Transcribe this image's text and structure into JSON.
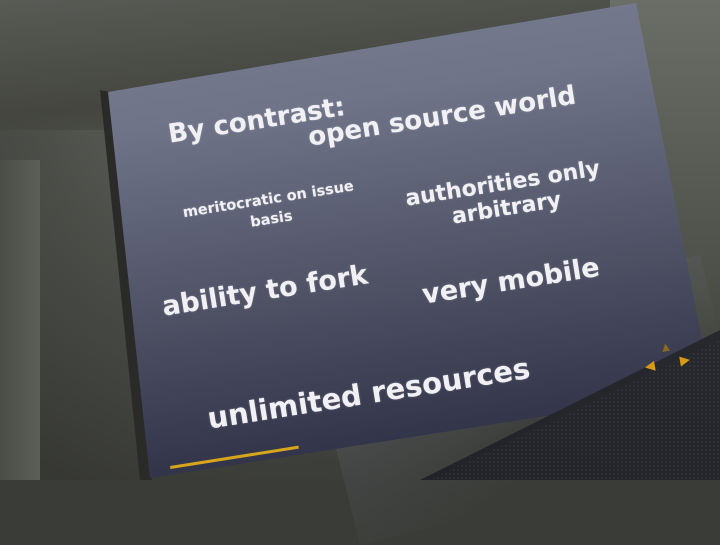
{
  "slide": {
    "title": "By contrast:",
    "subtitle": "open source world",
    "left_point_1": "meritocratic on issue basis",
    "right_point_1": "authorities only arbitrary",
    "left_point_2": "ability to fork",
    "right_point_2": "very mobile",
    "bottom_point": "unlimited resources"
  },
  "navigation": {
    "prev_icon": "◀",
    "next_icon": "▶",
    "up_icon": "▲"
  },
  "colors": {
    "slide_text": "#f1f0f4",
    "slide_background": "#6f7488",
    "accent": "#d79a16"
  }
}
